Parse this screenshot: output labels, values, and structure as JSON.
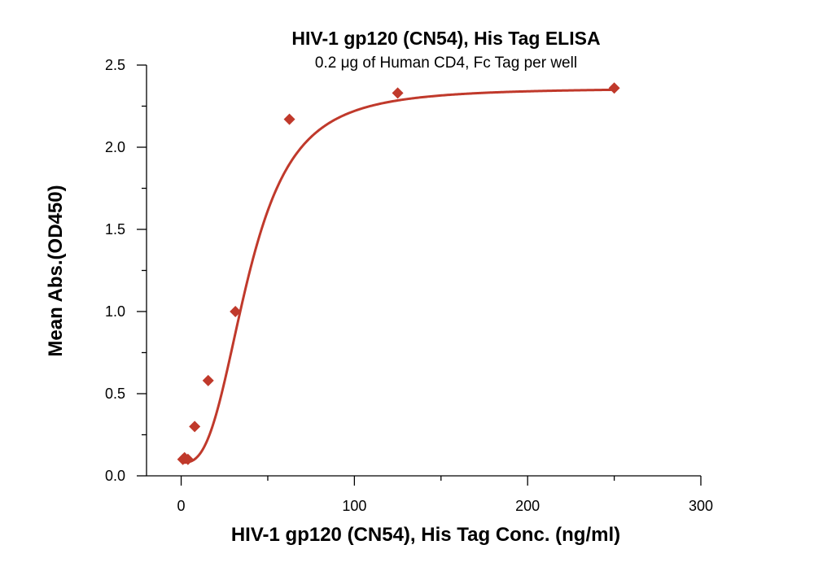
{
  "chart_data": {
    "type": "scatter",
    "title": "HIV-1 gp120 (CN54), His Tag ELISA",
    "subtitle": "0.2 μg of Human CD4, Fc Tag per well",
    "xlabel": "HIV-1 gp120 (CN54), His Tag Conc. (ng/ml)",
    "ylabel": "Mean Abs.(OD450)",
    "xlim": [
      -20,
      300
    ],
    "ylim": [
      0,
      2.5
    ],
    "x_ticks": [
      0,
      100,
      200,
      300
    ],
    "x_tick_labels": [
      "0",
      "100",
      "200",
      "300"
    ],
    "y_ticks": [
      0,
      0.5,
      1.0,
      1.5,
      2.0,
      2.5
    ],
    "y_tick_labels": [
      "0.0",
      "0.5",
      "1.0",
      "1.5",
      "2.0",
      "2.5"
    ],
    "grid": false,
    "legend": "none",
    "color": "#c0392b",
    "series": [
      {
        "marker": "diamond",
        "x": [
          0.98,
          1.95,
          3.9,
          7.8,
          15.6,
          31.3,
          62.5,
          125,
          250
        ],
        "y": [
          0.1,
          0.11,
          0.1,
          0.3,
          0.58,
          1.0,
          2.17,
          2.33,
          2.36
        ]
      }
    ],
    "fit": {
      "type": "4PL",
      "bottom": 0.08,
      "top": 2.36,
      "ec50": 39,
      "hill": 2.9
    }
  }
}
